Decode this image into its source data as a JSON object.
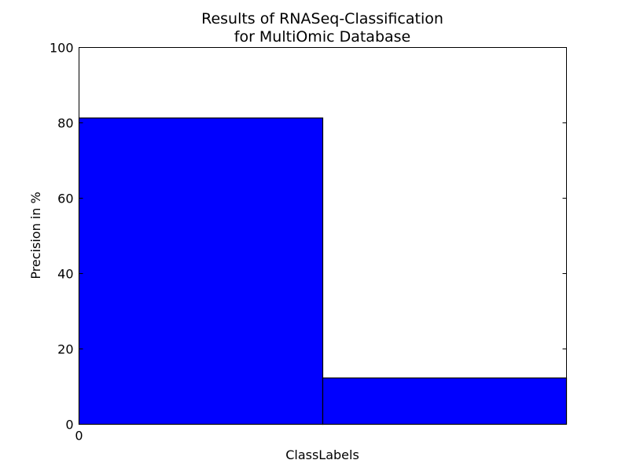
{
  "chart_data": {
    "type": "bar",
    "title": [
      "Results of RNASeq-Classification",
      "for MultiOmic Database"
    ],
    "xlabel": "ClassLabels",
    "ylabel": "Precision in %",
    "ylim": [
      0,
      100
    ],
    "y_ticks": [
      "0",
      "20",
      "40",
      "60",
      "80",
      "100"
    ],
    "x_ticks": [
      "0"
    ],
    "categories": [
      "",
      ""
    ],
    "values": [
      81.3,
      12.3
    ],
    "bar_color": "#0000ff",
    "edge_color": "#000000",
    "grid": false,
    "legend": "none"
  }
}
